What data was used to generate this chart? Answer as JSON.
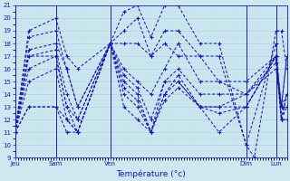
{
  "xlabel": "Température (°c)",
  "bg_color": "#cde8f0",
  "grid_color": "#b0ccdd",
  "line_color": "#1a1aaa",
  "ylim": [
    9,
    21
  ],
  "yticks": [
    9,
    10,
    11,
    12,
    13,
    14,
    15,
    16,
    17,
    18,
    19,
    20,
    21
  ],
  "day_lines": [
    0,
    15,
    35,
    85,
    96
  ],
  "day_labels": [
    "Jeu",
    "Sam",
    "Ven",
    "Dim",
    "Lun"
  ],
  "xlim": [
    0,
    100
  ],
  "series": [
    [
      0,
      11,
      5,
      19,
      15,
      20,
      19,
      17,
      23,
      16,
      35,
      18,
      40,
      20.5,
      45,
      21,
      50,
      18.5,
      55,
      21,
      60,
      21,
      68,
      18,
      75,
      18,
      85,
      10,
      88,
      9,
      96,
      19,
      98,
      19,
      100,
      16
    ],
    [
      0,
      11,
      5,
      18.5,
      15,
      19,
      19,
      16,
      23,
      13,
      35,
      18,
      40,
      19,
      45,
      20,
      50,
      17,
      55,
      19,
      60,
      19,
      68,
      17,
      75,
      17,
      85,
      10,
      96,
      18,
      98,
      12,
      100,
      14
    ],
    [
      0,
      11,
      5,
      17.5,
      15,
      18,
      19,
      16,
      23,
      13,
      35,
      18,
      40,
      18,
      45,
      18,
      50,
      17,
      55,
      18,
      60,
      17,
      68,
      17,
      75,
      15,
      85,
      14,
      96,
      16,
      98,
      13,
      100,
      13
    ],
    [
      0,
      11,
      5,
      17,
      15,
      17.5,
      19,
      14,
      23,
      12,
      35,
      18,
      40,
      16,
      45,
      15,
      50,
      14,
      55,
      16,
      60,
      18,
      68,
      15,
      75,
      15,
      85,
      15,
      96,
      17,
      98,
      13,
      100,
      17
    ],
    [
      0,
      11,
      5,
      17,
      15,
      17,
      19,
      13,
      23,
      12,
      35,
      18,
      40,
      15.5,
      45,
      14.5,
      50,
      12,
      55,
      15,
      60,
      16,
      68,
      14,
      75,
      14,
      85,
      14,
      96,
      17,
      98,
      12,
      100,
      13
    ],
    [
      0,
      11,
      5,
      16,
      15,
      17,
      19,
      13,
      23,
      11,
      35,
      18,
      40,
      15,
      45,
      14,
      50,
      11,
      55,
      15,
      60,
      15,
      68,
      13,
      75,
      13,
      85,
      14,
      96,
      16.5,
      98,
      12,
      100,
      14
    ],
    [
      0,
      11,
      5,
      15,
      15,
      16,
      19,
      12,
      23,
      11,
      35,
      18,
      40,
      14.5,
      45,
      13.5,
      50,
      11,
      55,
      14,
      60,
      15.5,
      68,
      13,
      75,
      13,
      85,
      13,
      96,
      17,
      98,
      13,
      100,
      14
    ],
    [
      0,
      11,
      5,
      13,
      15,
      13,
      19,
      12,
      23,
      11,
      35,
      18,
      40,
      14,
      45,
      13,
      50,
      11,
      55,
      14,
      60,
      15,
      68,
      13,
      75,
      12.5,
      85,
      13,
      96,
      17,
      98,
      13,
      100,
      17
    ],
    [
      0,
      11,
      5,
      13,
      15,
      13,
      19,
      11,
      23,
      11,
      35,
      18,
      40,
      13,
      45,
      12,
      50,
      11,
      55,
      13.5,
      60,
      14.5,
      68,
      13,
      75,
      11,
      85,
      13,
      96,
      17,
      98,
      12,
      100,
      12
    ]
  ]
}
